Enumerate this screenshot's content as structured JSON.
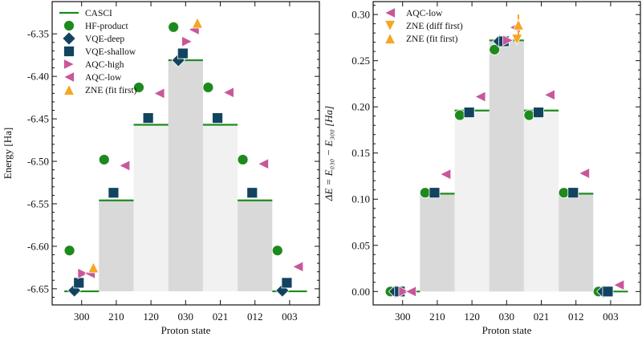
{
  "colors": {
    "CASCI": "#1e8a1e",
    "HF-product": "#1e8a1e",
    "VQE-deep": "#12445f",
    "VQE-shallow": "#12445f",
    "AQC-high": "#c8579a",
    "AQC-low": "#c8579a",
    "ZNE (diff first)": "#f5a623",
    "ZNE (fit first)": "#f5a623",
    "bar_dark": "#d9d9d9",
    "bar_light": "#f1f1f1"
  },
  "markers": {
    "HF-product": "circle",
    "VQE-deep": "diamond",
    "VQE-shallow": "square",
    "AQC-high": "triangle-right",
    "AQC-low": "triangle-left",
    "ZNE (diff first)": "triangle-down",
    "ZNE (fit first)": "triangle-up"
  },
  "chart_data": [
    {
      "type": "bar",
      "xlabel": "Proton state",
      "ylabel": "Energy [Ha]",
      "categories": [
        "300",
        "210",
        "120",
        "030",
        "021",
        "012",
        "003"
      ],
      "ylim": [
        -6.669,
        -6.312
      ],
      "yticks": [
        "-6.35",
        "-6.40",
        "-6.45",
        "-6.50",
        "-6.55",
        "-6.60",
        "-6.65"
      ],
      "ytick_values": [
        -6.35,
        -6.4,
        -6.45,
        -6.5,
        -6.55,
        -6.6,
        -6.65
      ],
      "grid": false,
      "legend_position": "top-left",
      "legend": [
        "CASCI",
        "HF-product",
        "VQE-deep",
        "VQE-shallow",
        "AQC-high",
        "AQC-low",
        "ZNE (fit first)"
      ],
      "bar_base": -6.653,
      "series": [
        {
          "name": "CASCI",
          "values": [
            -6.653,
            -6.546,
            -6.457,
            -6.381,
            -6.457,
            -6.546,
            -6.653
          ]
        },
        {
          "name": "HF-product",
          "values": [
            -6.605,
            -6.498,
            -6.413,
            -6.342,
            -6.413,
            -6.498,
            -6.605
          ]
        },
        {
          "name": "VQE-deep",
          "values": [
            -6.652,
            null,
            null,
            -6.381,
            null,
            null,
            -6.652
          ]
        },
        {
          "name": "VQE-shallow",
          "values": [
            -6.643,
            -6.537,
            -6.449,
            -6.373,
            -6.449,
            -6.537,
            -6.643
          ]
        },
        {
          "name": "AQC-high",
          "values": [
            -6.632,
            null,
            null,
            -6.359,
            null,
            null,
            null
          ]
        },
        {
          "name": "AQC-low",
          "values": [
            -6.632,
            -6.505,
            -6.42,
            -6.345,
            -6.419,
            -6.503,
            -6.624
          ]
        },
        {
          "name": "ZNE (fit first)",
          "values": [
            -6.625,
            null,
            null,
            -6.337,
            null,
            null,
            null
          ],
          "error": [
            0.004,
            null,
            null,
            0.005,
            null,
            null,
            null
          ]
        }
      ]
    },
    {
      "type": "bar",
      "xlabel": "Proton state",
      "ylabel": "ΔE = E₀₃₀ − E₃₀₀ [Ha]",
      "categories": [
        "300",
        "210",
        "120",
        "030",
        "021",
        "012",
        "003"
      ],
      "ylim": [
        -0.0145,
        0.314
      ],
      "yticks": [
        "0.00",
        "0.05",
        "0.10",
        "0.15",
        "0.20",
        "0.25",
        "0.30"
      ],
      "ytick_values": [
        0,
        0.05,
        0.1,
        0.15,
        0.2,
        0.25,
        0.3
      ],
      "grid": false,
      "legend_position": "top-left",
      "legend": [
        "AQC-low",
        "ZNE (diff first)",
        "ZNE (fit first)"
      ],
      "bar_base": 0,
      "series": [
        {
          "name": "CASCI",
          "values": [
            0,
            0.106,
            0.196,
            0.272,
            0.196,
            0.106,
            0
          ]
        },
        {
          "name": "HF-product",
          "values": [
            0,
            0.107,
            0.191,
            0.262,
            0.191,
            0.107,
            0
          ]
        },
        {
          "name": "VQE-deep",
          "values": [
            0,
            null,
            null,
            0.271,
            null,
            null,
            0
          ]
        },
        {
          "name": "VQE-shallow",
          "values": [
            0,
            0.107,
            0.194,
            0.271,
            0.194,
            0.107,
            0
          ]
        },
        {
          "name": "AQC-high",
          "values": [
            0,
            null,
            null,
            0.272,
            null,
            null,
            null
          ]
        },
        {
          "name": "AQC-low",
          "values": [
            0,
            0.127,
            0.211,
            0.286,
            0.213,
            0.128,
            0.007
          ]
        },
        {
          "name": "ZNE (diff first)",
          "values": [
            null,
            null,
            null,
            0.273,
            null,
            null,
            null
          ]
        },
        {
          "name": "ZNE (fit first)",
          "values": [
            null,
            null,
            null,
            0.289,
            null,
            null,
            null
          ],
          "error": [
            null,
            null,
            null,
            0.011,
            null,
            null,
            null
          ]
        }
      ]
    }
  ]
}
